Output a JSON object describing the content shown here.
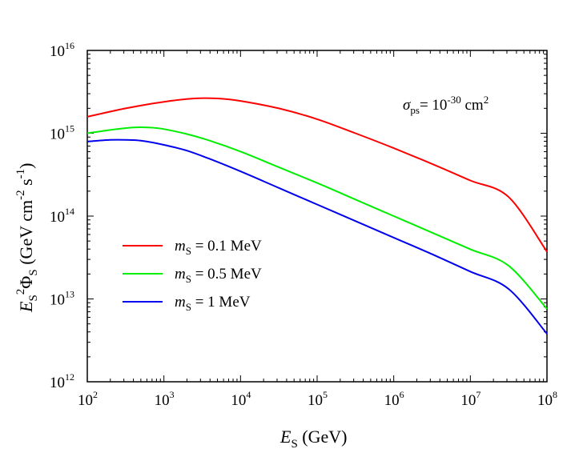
{
  "chart_data": {
    "type": "line",
    "x_scale": "log",
    "y_scale": "log",
    "xlim": [
      100,
      100000000
    ],
    "ylim": [
      1000000000000,
      10000000000000000
    ],
    "x_ticks": [
      {
        "base": "10",
        "exp": "2"
      },
      {
        "base": "10",
        "exp": "3"
      },
      {
        "base": "10",
        "exp": "4"
      },
      {
        "base": "10",
        "exp": "5"
      },
      {
        "base": "10",
        "exp": "6"
      },
      {
        "base": "10",
        "exp": "7"
      },
      {
        "base": "10",
        "exp": "8"
      }
    ],
    "y_ticks": [
      {
        "base": "10",
        "exp": "12"
      },
      {
        "base": "10",
        "exp": "13"
      },
      {
        "base": "10",
        "exp": "14"
      },
      {
        "base": "10",
        "exp": "15"
      },
      {
        "base": "10",
        "exp": "16"
      }
    ],
    "xlabel": {
      "var": "E",
      "sub": "S",
      "rest": " (GeV)"
    },
    "ylabel": {
      "var": "E",
      "sub1": "S",
      "sup1": "2",
      "phi": "Φ",
      "sub2": "S",
      "unit_open": " (GeV cm",
      "sup2": "-2",
      "unit_mid": " s",
      "sup3": "-1",
      "unit_close": ")"
    },
    "annotation": {
      "sym": "σ",
      "sub": "ps",
      "eq": "= 10",
      "sup": "-30",
      "unit": " cm",
      "unit_sup": "2"
    },
    "legend_position": "center-left",
    "series": [
      {
        "name_var": "m",
        "name_sub": "S",
        "name_rest": " = 0.1 MeV",
        "color": "#ff0000",
        "log_x": [
          2,
          2.5,
          3,
          3.4,
          3.7,
          4,
          4.5,
          5,
          5.5,
          6,
          6.5,
          7,
          7.5,
          8
        ],
        "log_y": [
          15.2,
          15.3,
          15.38,
          15.42,
          15.42,
          15.39,
          15.3,
          15.17,
          15.0,
          14.82,
          14.63,
          14.43,
          14.23,
          13.57
        ]
      },
      {
        "name_var": "m",
        "name_sub": "S",
        "name_rest": " = 0.5 MeV",
        "color": "#00ee00",
        "log_x": [
          2,
          2.3,
          2.6,
          2.8,
          3,
          3.3,
          3.6,
          4,
          4.5,
          5,
          5.5,
          6,
          6.5,
          7,
          7.5,
          8
        ],
        "log_y": [
          15.0,
          15.04,
          15.07,
          15.07,
          15.05,
          14.99,
          14.91,
          14.78,
          14.59,
          14.4,
          14.2,
          14.0,
          13.8,
          13.6,
          13.4,
          12.88
        ]
      },
      {
        "name_var": "m",
        "name_sub": "S",
        "name_rest": " = 1 MeV",
        "color": "#0000ee",
        "log_x": [
          2,
          2.3,
          2.5,
          2.7,
          3,
          3.3,
          3.6,
          4,
          4.5,
          5,
          5.5,
          6,
          6.5,
          7,
          7.5,
          8
        ],
        "log_y": [
          14.9,
          14.92,
          14.92,
          14.91,
          14.86,
          14.79,
          14.69,
          14.54,
          14.34,
          14.14,
          13.94,
          13.74,
          13.54,
          13.33,
          13.12,
          12.58
        ]
      }
    ]
  }
}
